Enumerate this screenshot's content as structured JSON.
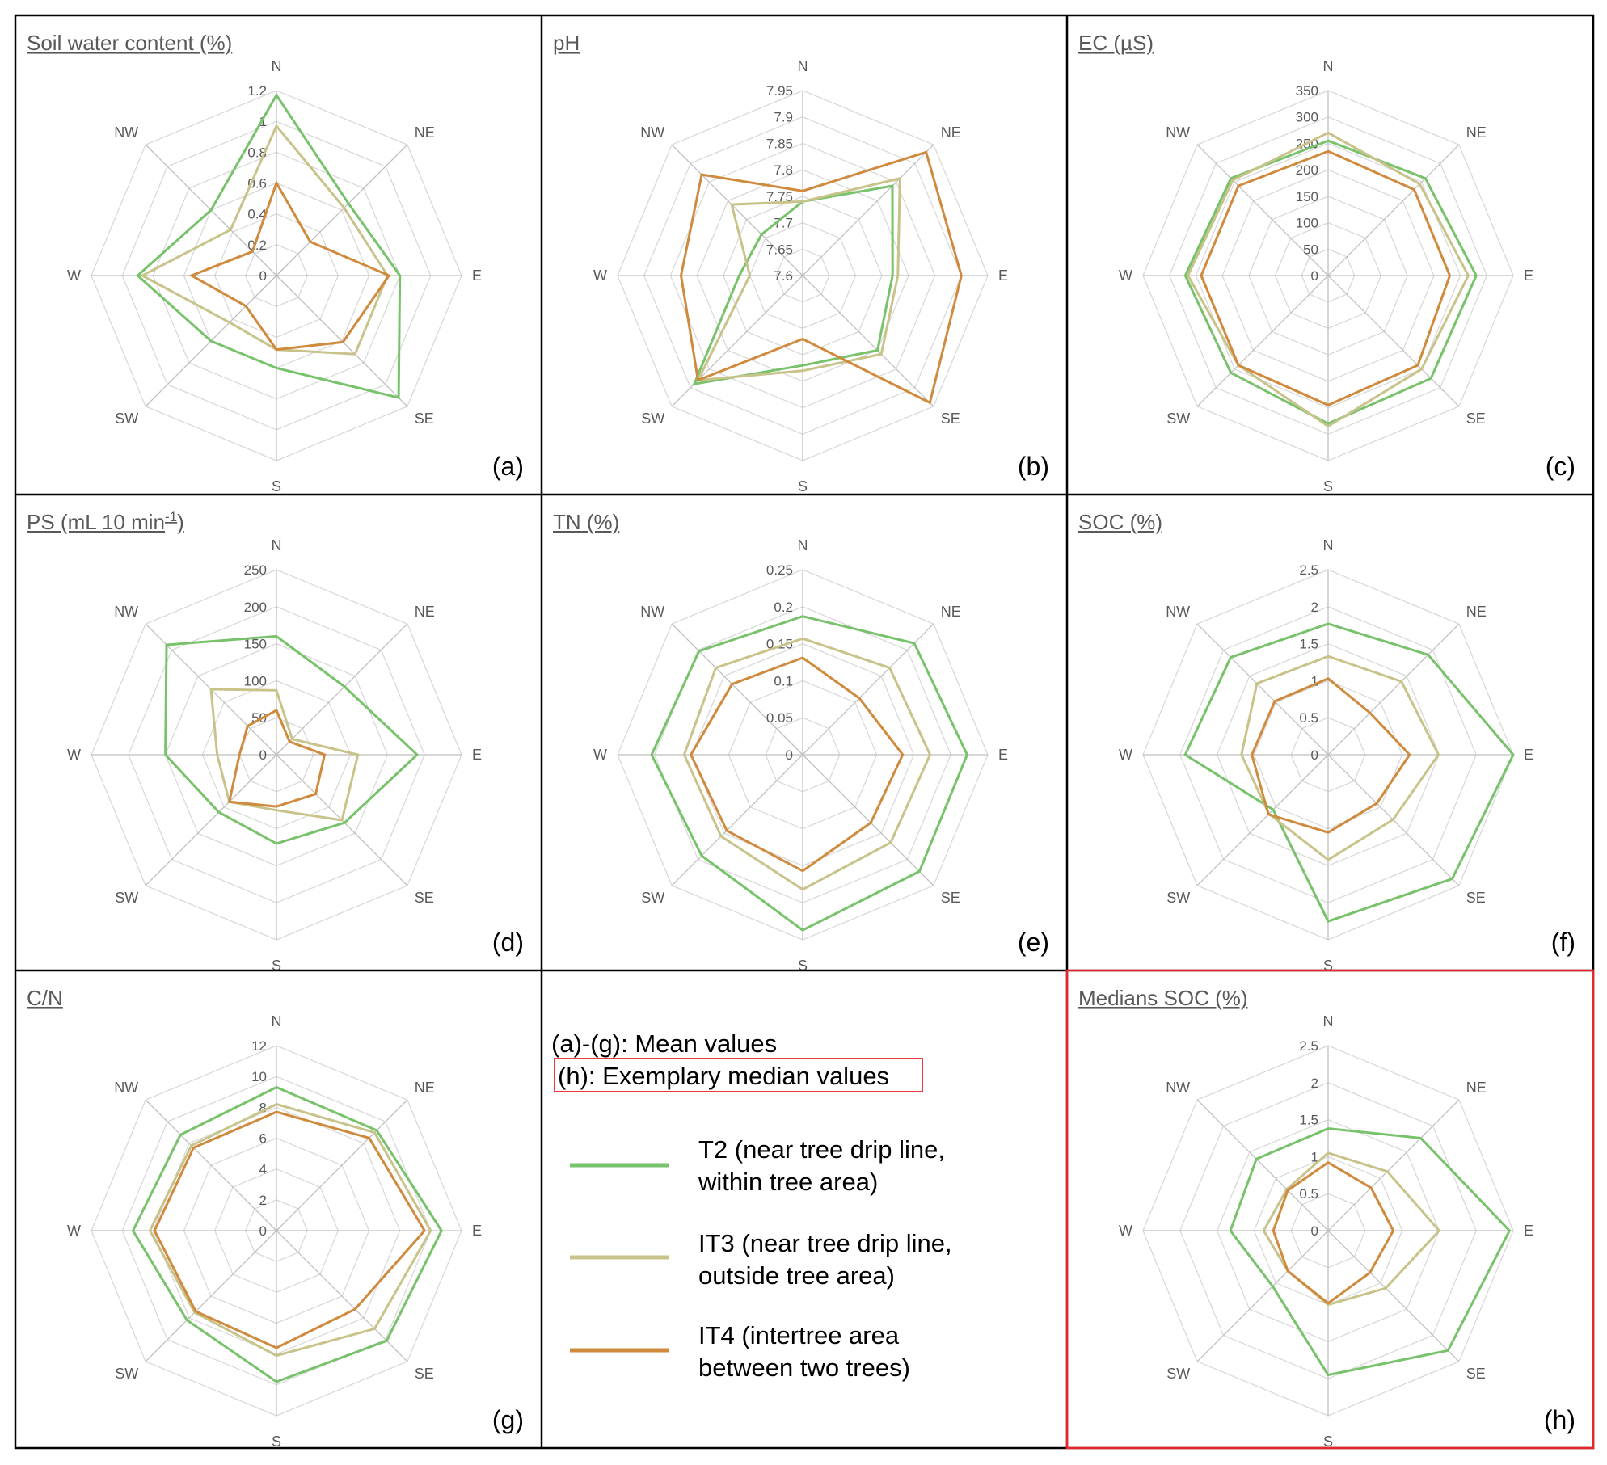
{
  "colors": {
    "T2": "#77c26a",
    "IT3": "#c8c38a",
    "IT4": "#d08a3e",
    "highlight": "#e8252a",
    "grid": "#d9d9d9",
    "axis": "#bfbfbf",
    "text": "#595959",
    "border": "#000000"
  },
  "directions": [
    "N",
    "NE",
    "E",
    "SE",
    "S",
    "SW",
    "W",
    "NW"
  ],
  "legend": {
    "line1": "(a)-(g): Mean values",
    "line2": "(h):  Exemplary median values",
    "entries": [
      {
        "key": "T2",
        "line1": "T2 (near tree drip line,",
        "line2": "within tree area)"
      },
      {
        "key": "IT3",
        "line1": "IT3 (near tree drip line,",
        "line2": "outside tree area)"
      },
      {
        "key": "IT4",
        "line1": "IT4 (intertree area",
        "line2": "between two trees)"
      }
    ]
  },
  "chart_data": [
    {
      "type": "radar",
      "id": "a",
      "letter": "(a)",
      "title": "Soil water content (%)",
      "title_sup": "",
      "title_after": "",
      "min": 0,
      "max": 1.2,
      "ticks": [
        "0",
        "0.2",
        "0.4",
        "0.6",
        "0.8",
        "1",
        "1.2"
      ],
      "categories": [
        "N",
        "NE",
        "E",
        "SE",
        "S",
        "SW",
        "W",
        "NW"
      ],
      "series": [
        {
          "name": "T2",
          "values": [
            1.17,
            0.66,
            0.8,
            1.12,
            0.6,
            0.6,
            0.9,
            0.6
          ]
        },
        {
          "name": "IT3",
          "values": [
            0.97,
            0.62,
            0.72,
            0.72,
            0.48,
            0.43,
            0.87,
            0.42
          ]
        },
        {
          "name": "IT4",
          "values": [
            0.6,
            0.31,
            0.73,
            0.61,
            0.48,
            0.28,
            0.55,
            0.22
          ]
        }
      ]
    },
    {
      "type": "radar",
      "id": "b",
      "letter": "(b)",
      "title": "pH",
      "title_sup": "",
      "title_after": "",
      "min": 7.6,
      "max": 7.95,
      "ticks": [
        "7.6",
        "7.65",
        "7.7",
        "7.75",
        "7.8",
        "7.85",
        "7.9",
        "7.95"
      ],
      "categories": [
        "N",
        "NE",
        "E",
        "SE",
        "S",
        "SW",
        "W",
        "NW"
      ],
      "series": [
        {
          "name": "T2",
          "values": [
            7.74,
            7.84,
            7.77,
            7.8,
            7.77,
            7.89,
            7.72,
            7.71
          ]
        },
        {
          "name": "IT3",
          "values": [
            7.74,
            7.86,
            7.78,
            7.81,
            7.78,
            7.88,
            7.7,
            7.79
          ]
        },
        {
          "name": "IT4",
          "values": [
            7.76,
            7.93,
            7.9,
            7.94,
            7.72,
            7.88,
            7.83,
            7.87
          ]
        }
      ]
    },
    {
      "type": "radar",
      "id": "c",
      "letter": "(c)",
      "title": "EC (µS)",
      "title_sup": "",
      "title_after": "",
      "min": 0,
      "max": 350,
      "ticks": [
        "0",
        "50",
        "100",
        "150",
        "200",
        "250",
        "300",
        "350"
      ],
      "categories": [
        "N",
        "NE",
        "E",
        "SE",
        "S",
        "SW",
        "W",
        "NW"
      ],
      "series": [
        {
          "name": "T2",
          "values": [
            255,
            260,
            280,
            275,
            280,
            260,
            270,
            260
          ]
        },
        {
          "name": "IT3",
          "values": [
            270,
            245,
            265,
            250,
            285,
            240,
            265,
            255
          ]
        },
        {
          "name": "IT4",
          "values": [
            235,
            230,
            230,
            240,
            245,
            240,
            240,
            240
          ]
        }
      ]
    },
    {
      "type": "radar",
      "id": "d",
      "letter": "(d)",
      "title": "PS (mL 10 min",
      "title_sup": "-1",
      "title_after": ")",
      "min": 0,
      "max": 250,
      "ticks": [
        "0",
        "50",
        "100",
        "150",
        "200",
        "250"
      ],
      "categories": [
        "N",
        "NE",
        "E",
        "SE",
        "S",
        "SW",
        "W",
        "NW"
      ],
      "series": [
        {
          "name": "T2",
          "values": [
            160,
            130,
            190,
            130,
            120,
            110,
            150,
            210
          ]
        },
        {
          "name": "IT3",
          "values": [
            87,
            30,
            110,
            125,
            75,
            90,
            80,
            125
          ]
        },
        {
          "name": "IT4",
          "values": [
            60,
            25,
            65,
            75,
            70,
            90,
            50,
            55
          ]
        }
      ]
    },
    {
      "type": "radar",
      "id": "e",
      "letter": "(e)",
      "title": "TN (%)",
      "title_sup": "",
      "title_after": "",
      "min": 0,
      "max": 0.25,
      "ticks": [
        "0",
        "0.05",
        "0.1",
        "0.15",
        "0.2",
        "0.25"
      ],
      "categories": [
        "N",
        "NE",
        "E",
        "SE",
        "S",
        "SW",
        "W",
        "NW"
      ],
      "series": [
        {
          "name": "T2",
          "values": [
            0.187,
            0.213,
            0.222,
            0.223,
            0.237,
            0.193,
            0.204,
            0.198
          ]
        },
        {
          "name": "IT3",
          "values": [
            0.157,
            0.166,
            0.172,
            0.168,
            0.182,
            0.156,
            0.16,
            0.166
          ]
        },
        {
          "name": "IT4",
          "values": [
            0.131,
            0.108,
            0.135,
            0.13,
            0.157,
            0.145,
            0.151,
            0.135
          ]
        }
      ]
    },
    {
      "type": "radar",
      "id": "f",
      "letter": "(f)",
      "title": "SOC (%)",
      "title_sup": "",
      "title_after": "",
      "min": 0,
      "max": 2.5,
      "ticks": [
        "0",
        "0.5",
        "1",
        "1.5",
        "2",
        "2.5"
      ],
      "categories": [
        "N",
        "NE",
        "E",
        "SE",
        "S",
        "SW",
        "W",
        "NW"
      ],
      "series": [
        {
          "name": "T2",
          "values": [
            1.77,
            1.91,
            2.5,
            2.37,
            2.25,
            1.05,
            1.93,
            1.86
          ]
        },
        {
          "name": "IT3",
          "values": [
            1.33,
            1.4,
            1.49,
            1.24,
            1.42,
            1.13,
            1.17,
            1.36
          ]
        },
        {
          "name": "IT4",
          "values": [
            1.03,
            0.8,
            1.1,
            0.93,
            1.05,
            1.14,
            1.03,
            1.02
          ]
        }
      ]
    },
    {
      "type": "radar",
      "id": "g",
      "letter": "(g)",
      "title": "C/N",
      "title_sup": "",
      "title_after": "",
      "min": 0,
      "max": 12,
      "ticks": [
        "0",
        "2",
        "4",
        "6",
        "8",
        "10",
        "12"
      ],
      "categories": [
        "N",
        "NE",
        "E",
        "SE",
        "S",
        "SW",
        "W",
        "NW"
      ],
      "series": [
        {
          "name": "T2",
          "values": [
            9.3,
            9.2,
            10.7,
            10.1,
            9.8,
            8.2,
            9.3,
            8.8
          ]
        },
        {
          "name": "IT3",
          "values": [
            8.2,
            9.0,
            10.0,
            9.0,
            8.1,
            7.5,
            8.2,
            7.8
          ]
        },
        {
          "name": "IT4",
          "values": [
            7.7,
            8.5,
            9.6,
            7.2,
            7.6,
            7.4,
            7.9,
            7.6
          ]
        }
      ]
    },
    {
      "type": "radar",
      "id": "h",
      "letter": "(h)",
      "title": "Medians SOC (%)",
      "title_sup": "",
      "title_after": "",
      "min": 0,
      "max": 2.5,
      "ticks": [
        "0",
        "0.5",
        "1",
        "1.5",
        "2",
        "2.5"
      ],
      "categories": [
        "N",
        "NE",
        "E",
        "SE",
        "S",
        "SW",
        "W",
        "NW"
      ],
      "series": [
        {
          "name": "T2",
          "values": [
            1.38,
            1.77,
            2.45,
            2.29,
            1.95,
            1.06,
            1.32,
            1.37
          ]
        },
        {
          "name": "IT3",
          "values": [
            1.05,
            1.13,
            1.5,
            1.1,
            1.0,
            0.77,
            0.87,
            0.79
          ]
        },
        {
          "name": "IT4",
          "values": [
            0.92,
            0.82,
            0.88,
            0.8,
            0.98,
            0.77,
            0.74,
            0.77
          ]
        }
      ]
    }
  ]
}
